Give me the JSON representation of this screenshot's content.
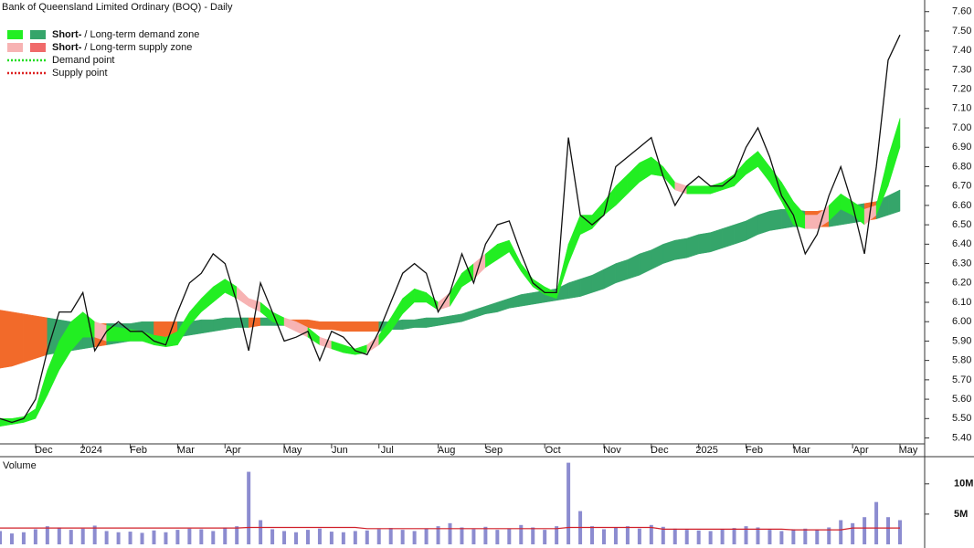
{
  "chart_data": {
    "type": "stock",
    "title": "Bank of Queensland Limited Ordinary (BOQ) - Daily",
    "legend": [
      {
        "short": "Short-",
        "label": "/ Long-term demand zone",
        "colors": [
          "#22ee22",
          "#35a56a"
        ]
      },
      {
        "short": "Short-",
        "label": "/ Long-term supply zone",
        "colors": [
          "#f7b3b3",
          "#f06a6a"
        ]
      },
      {
        "label": "Demand point",
        "color": "#22dd22"
      },
      {
        "label": "Supply point",
        "color": "#dd2222"
      }
    ],
    "long_supply_fill": "#f26a2a",
    "price_color": "#111111",
    "categories": [
      null,
      null,
      null,
      "Dec",
      null,
      null,
      null,
      "2024",
      null,
      null,
      null,
      "Feb",
      null,
      null,
      null,
      "Mar",
      null,
      null,
      null,
      "Apr",
      null,
      null,
      null,
      null,
      "May",
      null,
      null,
      null,
      "Jun",
      null,
      null,
      null,
      "Jul",
      null,
      null,
      null,
      null,
      "Aug",
      null,
      null,
      null,
      "Sep",
      null,
      null,
      null,
      null,
      "Oct",
      null,
      null,
      null,
      null,
      "Nov",
      null,
      null,
      null,
      "Dec",
      null,
      null,
      null,
      "2025",
      null,
      null,
      null,
      "Feb",
      null,
      null,
      null,
      "Mar",
      null,
      null,
      null,
      null,
      "Apr",
      null,
      null,
      null,
      "May"
    ],
    "close": [
      5.5,
      5.48,
      5.5,
      5.6,
      5.85,
      6.05,
      6.05,
      6.15,
      5.85,
      5.95,
      6.0,
      5.95,
      5.95,
      5.9,
      5.88,
      6.05,
      6.2,
      6.25,
      6.35,
      6.3,
      6.1,
      5.85,
      6.2,
      6.05,
      5.9,
      5.92,
      5.95,
      5.8,
      5.95,
      5.92,
      5.85,
      5.83,
      5.95,
      6.1,
      6.25,
      6.3,
      6.25,
      6.05,
      6.15,
      6.35,
      6.2,
      6.4,
      6.5,
      6.52,
      6.35,
      6.2,
      6.15,
      6.15,
      6.95,
      6.55,
      6.5,
      6.55,
      6.8,
      6.85,
      6.9,
      6.95,
      6.75,
      6.6,
      6.7,
      6.75,
      6.7,
      6.7,
      6.75,
      6.9,
      7.0,
      6.85,
      6.65,
      6.55,
      6.35,
      6.45,
      6.65,
      6.8,
      6.6,
      6.35,
      6.8,
      7.35,
      7.48
    ],
    "short_zone": {
      "upper": [
        5.5,
        5.5,
        5.51,
        5.55,
        5.75,
        5.9,
        6.0,
        6.05,
        6.0,
        5.98,
        5.97,
        5.96,
        5.95,
        5.93,
        5.92,
        5.95,
        6.05,
        6.12,
        6.18,
        6.22,
        6.18,
        6.12,
        6.1,
        6.05,
        6.02,
        6.0,
        5.97,
        5.92,
        5.9,
        5.88,
        5.86,
        5.88,
        5.93,
        6.02,
        6.12,
        6.17,
        6.15,
        6.1,
        6.15,
        6.25,
        6.3,
        6.35,
        6.4,
        6.42,
        6.3,
        6.22,
        6.18,
        6.15,
        6.4,
        6.55,
        6.55,
        6.62,
        6.7,
        6.76,
        6.82,
        6.85,
        6.8,
        6.72,
        6.7,
        6.7,
        6.7,
        6.72,
        6.76,
        6.83,
        6.88,
        6.8,
        6.72,
        6.62,
        6.55,
        6.55,
        6.6,
        6.66,
        6.62,
        6.58,
        6.6,
        6.85,
        7.05
      ],
      "lower": [
        5.46,
        5.47,
        5.48,
        5.5,
        5.62,
        5.75,
        5.85,
        5.92,
        5.92,
        5.9,
        5.9,
        5.9,
        5.9,
        5.88,
        5.87,
        5.88,
        5.98,
        6.05,
        6.1,
        6.15,
        6.12,
        6.08,
        6.05,
        6.0,
        5.98,
        5.95,
        5.92,
        5.88,
        5.86,
        5.84,
        5.83,
        5.84,
        5.88,
        5.95,
        6.04,
        6.1,
        6.1,
        6.06,
        6.08,
        6.18,
        6.22,
        6.28,
        6.32,
        6.36,
        6.26,
        6.18,
        6.14,
        6.12,
        6.3,
        6.45,
        6.48,
        6.55,
        6.6,
        6.66,
        6.72,
        6.76,
        6.75,
        6.68,
        6.66,
        6.66,
        6.66,
        6.68,
        6.7,
        6.76,
        6.8,
        6.72,
        6.62,
        6.5,
        6.48,
        6.48,
        6.52,
        6.58,
        6.55,
        6.5,
        6.55,
        6.7,
        6.9
      ]
    },
    "long_zone": {
      "upper": [
        6.06,
        6.05,
        6.04,
        6.03,
        6.02,
        6.01,
        6.0,
        5.99,
        5.99,
        5.99,
        5.99,
        5.99,
        6.0,
        6.0,
        6.0,
        6.0,
        6.0,
        6.01,
        6.01,
        6.02,
        6.02,
        6.02,
        6.02,
        6.02,
        6.01,
        6.01,
        6.01,
        6.0,
        6.0,
        6.0,
        6.0,
        6.0,
        6.0,
        6.0,
        6.01,
        6.01,
        6.02,
        6.02,
        6.03,
        6.04,
        6.06,
        6.08,
        6.1,
        6.12,
        6.14,
        6.15,
        6.16,
        6.17,
        6.2,
        6.22,
        6.24,
        6.27,
        6.3,
        6.32,
        6.35,
        6.37,
        6.4,
        6.42,
        6.43,
        6.45,
        6.46,
        6.48,
        6.5,
        6.52,
        6.55,
        6.57,
        6.58,
        6.58,
        6.57,
        6.57,
        6.58,
        6.59,
        6.6,
        6.61,
        6.62,
        6.65,
        6.68
      ],
      "lower": [
        5.76,
        5.77,
        5.79,
        5.81,
        5.83,
        5.84,
        5.85,
        5.86,
        5.87,
        5.88,
        5.89,
        5.9,
        5.9,
        5.91,
        5.92,
        5.92,
        5.93,
        5.94,
        5.95,
        5.96,
        5.97,
        5.97,
        5.98,
        5.98,
        5.98,
        5.97,
        5.97,
        5.96,
        5.96,
        5.95,
        5.95,
        5.95,
        5.95,
        5.96,
        5.96,
        5.97,
        5.97,
        5.98,
        5.99,
        6.0,
        6.02,
        6.04,
        6.05,
        6.07,
        6.08,
        6.09,
        6.1,
        6.11,
        6.12,
        6.13,
        6.15,
        6.17,
        6.2,
        6.22,
        6.24,
        6.27,
        6.3,
        6.32,
        6.33,
        6.35,
        6.36,
        6.38,
        6.4,
        6.42,
        6.45,
        6.47,
        6.48,
        6.49,
        6.49,
        6.49,
        6.49,
        6.5,
        6.51,
        6.52,
        6.53,
        6.55,
        6.57
      ]
    },
    "ylim": [
      5.36,
      7.66
    ],
    "yticks": [
      {
        "value": 5.4,
        "label": "5.40"
      },
      {
        "value": 5.5,
        "label": "5.50"
      },
      {
        "value": 5.6,
        "label": "5.60"
      },
      {
        "value": 5.7,
        "label": "5.70"
      },
      {
        "value": 5.8,
        "label": "5.80"
      },
      {
        "value": 5.9,
        "label": "5.90"
      },
      {
        "value": 6.0,
        "label": "6.00"
      },
      {
        "value": 6.1,
        "label": "6.10"
      },
      {
        "value": 6.2,
        "label": "6.20"
      },
      {
        "value": 6.3,
        "label": "6.30"
      },
      {
        "value": 6.4,
        "label": "6.40"
      },
      {
        "value": 6.5,
        "label": "6.50"
      },
      {
        "value": 6.6,
        "label": "6.60"
      },
      {
        "value": 6.7,
        "label": "6.70"
      },
      {
        "value": 6.8,
        "label": "6.80"
      },
      {
        "value": 6.9,
        "label": "6.90"
      },
      {
        "value": 7.0,
        "label": "7.00"
      },
      {
        "value": 7.1,
        "label": "7.10"
      },
      {
        "value": 7.2,
        "label": "7.20"
      },
      {
        "value": 7.3,
        "label": "7.30"
      },
      {
        "value": 7.4,
        "label": "7.40"
      },
      {
        "value": 7.5,
        "label": "7.50"
      },
      {
        "value": 7.6,
        "label": "7.60"
      }
    ],
    "volume": {
      "label": "Volume",
      "color": "#8c8cd0",
      "average_color": "#d0202a",
      "values": [
        2.2,
        1.8,
        2.0,
        2.5,
        3.0,
        2.8,
        2.4,
        2.6,
        3.1,
        2.2,
        2.0,
        2.1,
        1.9,
        2.3,
        2.0,
        2.4,
        2.6,
        2.5,
        2.2,
        2.8,
        3.0,
        12.0,
        4.0,
        2.5,
        2.2,
        2.0,
        2.4,
        2.6,
        2.1,
        2.0,
        2.2,
        2.3,
        2.5,
        2.7,
        2.4,
        2.2,
        2.6,
        3.0,
        3.5,
        2.8,
        2.5,
        2.9,
        2.4,
        2.6,
        3.2,
        2.8,
        2.4,
        3.0,
        13.5,
        5.5,
        3.0,
        2.5,
        2.8,
        3.0,
        2.6,
        3.2,
        2.9,
        2.6,
        2.4,
        2.3,
        2.2,
        2.5,
        2.7,
        3.0,
        2.8,
        2.4,
        2.2,
        2.5,
        2.6,
        2.4,
        2.8,
        4.0,
        3.5,
        4.5,
        7.0,
        4.5,
        4.0
      ],
      "average": [
        2.7,
        2.7,
        2.7,
        2.7,
        2.7,
        2.7,
        2.7,
        2.7,
        2.7,
        2.7,
        2.7,
        2.7,
        2.7,
        2.7,
        2.7,
        2.7,
        2.7,
        2.7,
        2.7,
        2.7,
        2.7,
        2.8,
        2.8,
        2.8,
        2.8,
        2.8,
        2.8,
        2.8,
        2.8,
        2.8,
        2.8,
        2.6,
        2.6,
        2.6,
        2.6,
        2.6,
        2.6,
        2.6,
        2.6,
        2.6,
        2.6,
        2.6,
        2.6,
        2.6,
        2.6,
        2.6,
        2.6,
        2.6,
        2.8,
        2.8,
        2.8,
        2.8,
        2.8,
        2.8,
        2.8,
        2.8,
        2.5,
        2.5,
        2.5,
        2.5,
        2.5,
        2.5,
        2.5,
        2.5,
        2.5,
        2.5,
        2.5,
        2.4,
        2.4,
        2.4,
        2.4,
        2.4,
        2.7,
        2.7,
        2.7,
        2.7,
        2.7
      ],
      "ylim": [
        0,
        14.5
      ],
      "yticks": [
        {
          "value": 5,
          "label": "5M"
        },
        {
          "value": 10,
          "label": "10M"
        }
      ]
    }
  }
}
